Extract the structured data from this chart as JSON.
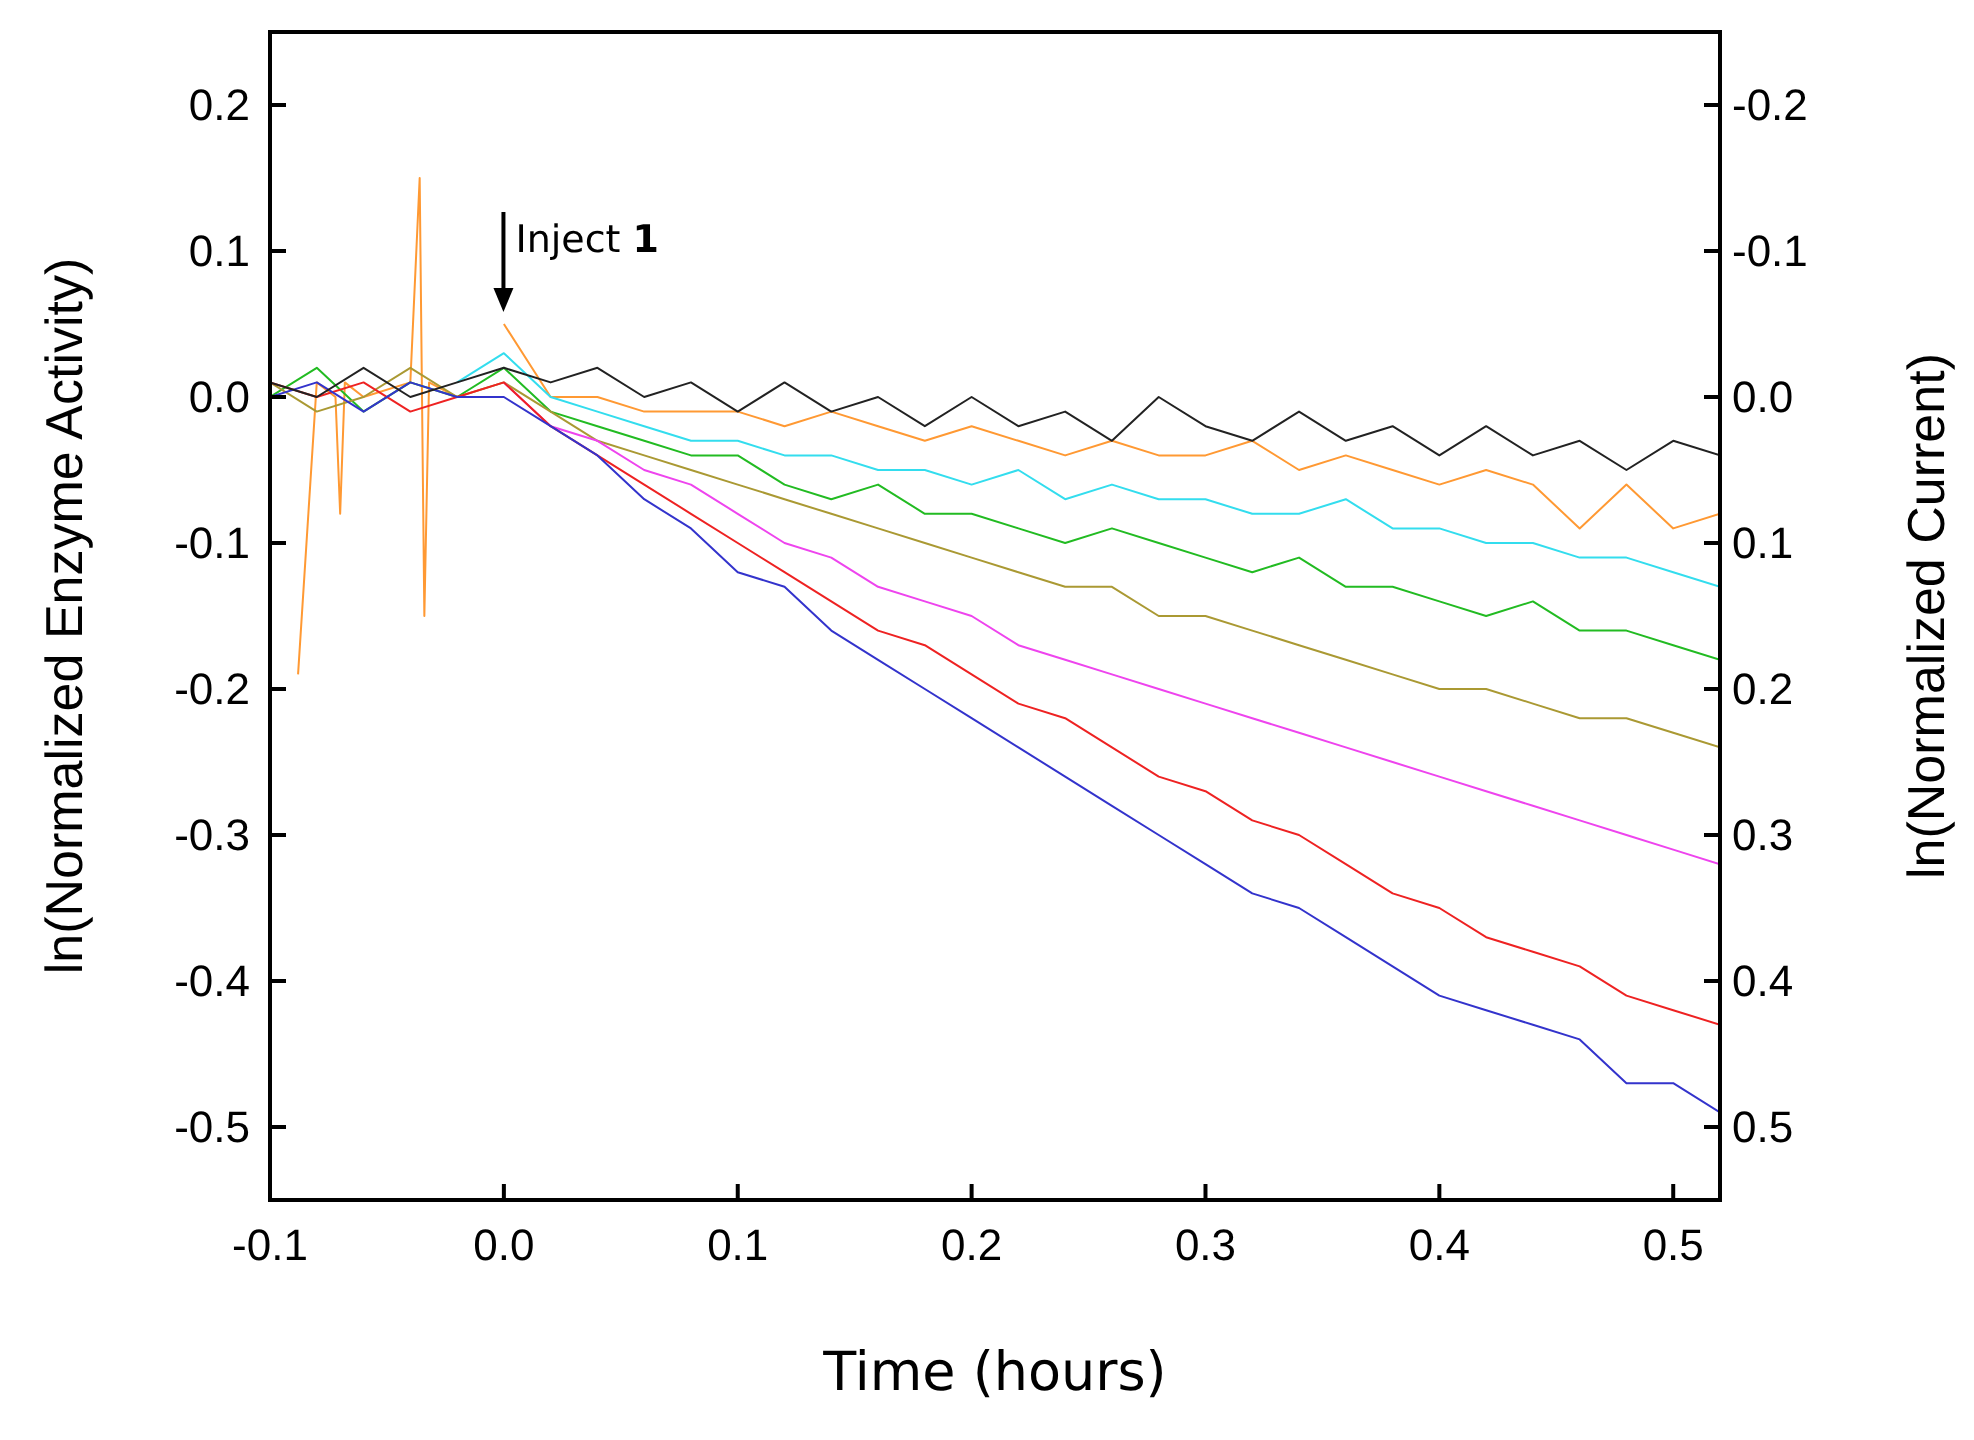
{
  "chart_data": {
    "type": "line",
    "xlabel": "Time (hours)",
    "ylabel": "ln(Normalized Enzyme Activity)",
    "y2label": "ln(Normalized Current)",
    "x": [
      -0.1,
      -0.08,
      -0.06,
      -0.04,
      -0.02,
      0,
      0.02,
      0.04,
      0.06,
      0.08,
      0.1,
      0.12,
      0.14,
      0.16,
      0.18,
      0.2,
      0.22,
      0.24,
      0.26,
      0.28,
      0.3,
      0.32,
      0.34,
      0.36,
      0.38,
      0.4,
      0.42,
      0.44,
      0.46,
      0.48,
      0.5,
      0.52
    ],
    "series": [
      {
        "color": "#ff9933",
        "x": [
          -0.088,
          -0.08,
          -0.072,
          -0.07,
          -0.068,
          -0.06,
          -0.04,
          -0.036,
          -0.034,
          -0.032,
          -0.02,
          -0.006,
          0,
          0.02,
          0.04,
          0.06,
          0.08,
          0.1,
          0.12,
          0.14,
          0.16,
          0.18,
          0.2,
          0.22,
          0.24,
          0.26,
          0.28,
          0.3,
          0.32,
          0.34,
          0.36,
          0.38,
          0.4,
          0.42,
          0.44,
          0.46,
          0.48,
          0.5,
          0.52
        ],
        "values": [
          -0.19,
          0.01,
          0.0,
          -0.08,
          0.01,
          0.0,
          0.01,
          0.15,
          -0.15,
          0.01,
          0.0,
          null,
          0.05,
          0.0,
          0.0,
          -0.01,
          -0.01,
          -0.01,
          -0.02,
          -0.01,
          -0.02,
          -0.03,
          -0.02,
          -0.03,
          -0.04,
          -0.03,
          -0.04,
          -0.04,
          -0.03,
          -0.05,
          -0.04,
          -0.05,
          -0.06,
          -0.05,
          -0.06,
          -0.09,
          -0.06,
          -0.09,
          -0.08
        ]
      },
      {
        "color": "#33ddee",
        "values": [
          null,
          null,
          null,
          null,
          0.01,
          0.03,
          0.0,
          -0.01,
          -0.02,
          -0.03,
          -0.03,
          -0.04,
          -0.04,
          -0.05,
          -0.05,
          -0.06,
          -0.05,
          -0.07,
          -0.06,
          -0.07,
          -0.07,
          -0.08,
          -0.08,
          -0.07,
          -0.09,
          -0.09,
          -0.1,
          -0.1,
          -0.11,
          -0.11,
          -0.12,
          -0.13
        ]
      },
      {
        "color": "#22bb22",
        "values": [
          0.0,
          0.02,
          -0.01,
          0.01,
          0.0,
          0.02,
          -0.01,
          -0.02,
          -0.03,
          -0.04,
          -0.04,
          -0.06,
          -0.07,
          -0.06,
          -0.08,
          -0.08,
          -0.09,
          -0.1,
          -0.09,
          -0.1,
          -0.11,
          -0.12,
          -0.11,
          -0.13,
          -0.13,
          -0.14,
          -0.15,
          -0.14,
          -0.16,
          -0.16,
          -0.17,
          -0.18
        ]
      },
      {
        "color": "#aa9933",
        "values": [
          0.01,
          -0.01,
          0.0,
          0.02,
          0.0,
          0.01,
          -0.01,
          -0.03,
          -0.04,
          -0.05,
          -0.06,
          -0.07,
          -0.08,
          -0.09,
          -0.1,
          -0.11,
          -0.12,
          -0.13,
          -0.13,
          -0.15,
          -0.15,
          -0.16,
          -0.17,
          -0.18,
          -0.19,
          -0.2,
          -0.2,
          -0.21,
          -0.22,
          -0.22,
          -0.23,
          -0.24
        ]
      },
      {
        "color": "#ee44ee",
        "values": [
          null,
          null,
          null,
          null,
          null,
          0.01,
          -0.02,
          -0.03,
          -0.05,
          -0.06,
          -0.08,
          -0.1,
          -0.11,
          -0.13,
          -0.14,
          -0.15,
          -0.17,
          -0.18,
          -0.19,
          -0.2,
          -0.21,
          -0.22,
          -0.23,
          -0.24,
          -0.25,
          -0.26,
          -0.27,
          -0.28,
          -0.29,
          -0.3,
          -0.31,
          -0.32
        ]
      },
      {
        "color": "#ee2222",
        "values": [
          0.01,
          0.0,
          0.01,
          -0.01,
          0.0,
          0.01,
          -0.02,
          -0.04,
          -0.06,
          -0.08,
          -0.1,
          -0.12,
          -0.14,
          -0.16,
          -0.17,
          -0.19,
          -0.21,
          -0.22,
          -0.24,
          -0.26,
          -0.27,
          -0.29,
          -0.3,
          -0.32,
          -0.34,
          -0.35,
          -0.37,
          -0.38,
          -0.39,
          -0.41,
          -0.42,
          -0.43
        ]
      },
      {
        "color": "#3333cc",
        "values": [
          0.0,
          0.01,
          -0.01,
          0.01,
          0.0,
          0.0,
          -0.02,
          -0.04,
          -0.07,
          -0.09,
          -0.12,
          -0.13,
          -0.16,
          -0.18,
          -0.2,
          -0.22,
          -0.24,
          -0.26,
          -0.28,
          -0.3,
          -0.32,
          -0.34,
          -0.35,
          -0.37,
          -0.39,
          -0.41,
          -0.42,
          -0.43,
          -0.44,
          -0.47,
          -0.47,
          -0.49
        ]
      },
      {
        "color": "#222222",
        "values": [
          0.01,
          0.0,
          0.02,
          0.0,
          0.01,
          0.02,
          0.01,
          0.02,
          0.0,
          0.01,
          -0.01,
          0.01,
          -0.01,
          0.0,
          -0.02,
          0.0,
          -0.02,
          -0.01,
          -0.03,
          0.0,
          -0.02,
          -0.03,
          -0.01,
          -0.03,
          -0.02,
          -0.04,
          -0.02,
          -0.04,
          -0.03,
          -0.05,
          -0.03,
          -0.04
        ]
      }
    ],
    "xlim": [
      -0.1,
      0.52
    ],
    "xticks": [
      -0.1,
      {
        "value": 0,
        "label": "0.0"
      },
      0.1,
      0.2,
      0.3,
      0.4,
      0.5
    ],
    "ylim": [
      -0.55,
      0.25
    ],
    "yticks": [
      -0.5,
      -0.4,
      -0.3,
      -0.2,
      -0.1,
      {
        "value": 0,
        "label": "0.0"
      },
      0.1,
      0.2
    ],
    "y2lim": [
      0.55,
      -0.25
    ],
    "y2ticks": [
      0.5,
      0.4,
      0.3,
      0.2,
      0.1,
      {
        "value": 0,
        "label": "0.0"
      },
      -0.1,
      -0.2
    ],
    "annotations": [
      "Inject 1"
    ]
  }
}
